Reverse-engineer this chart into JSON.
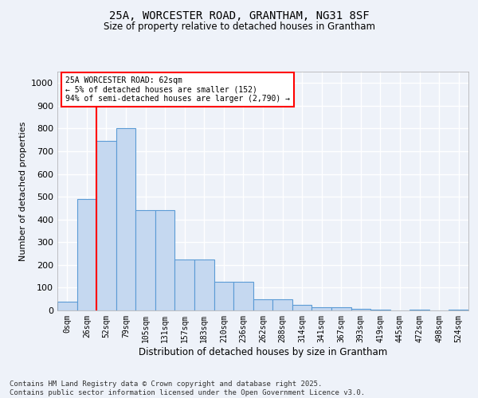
{
  "title": "25A, WORCESTER ROAD, GRANTHAM, NG31 8SF",
  "subtitle": "Size of property relative to detached houses in Grantham",
  "xlabel": "Distribution of detached houses by size in Grantham",
  "ylabel": "Number of detached properties",
  "categories": [
    "0sqm",
    "26sqm",
    "52sqm",
    "79sqm",
    "105sqm",
    "131sqm",
    "157sqm",
    "183sqm",
    "210sqm",
    "236sqm",
    "262sqm",
    "288sqm",
    "314sqm",
    "341sqm",
    "367sqm",
    "393sqm",
    "419sqm",
    "445sqm",
    "472sqm",
    "498sqm",
    "524sqm"
  ],
  "values": [
    40,
    490,
    745,
    800,
    440,
    440,
    225,
    225,
    125,
    125,
    50,
    50,
    25,
    13,
    13,
    8,
    5,
    0,
    5,
    0,
    5
  ],
  "bar_color": "#c5d8f0",
  "bar_edge_color": "#5b9bd5",
  "bar_width": 1.0,
  "vline_x": 1.5,
  "vline_color": "red",
  "annotation_text": "25A WORCESTER ROAD: 62sqm\n← 5% of detached houses are smaller (152)\n94% of semi-detached houses are larger (2,790) →",
  "annotation_box_color": "white",
  "annotation_box_edge_color": "red",
  "ylim": [
    0,
    1050
  ],
  "yticks": [
    0,
    100,
    200,
    300,
    400,
    500,
    600,
    700,
    800,
    900,
    1000
  ],
  "background_color": "#eef2f9",
  "grid_color": "white",
  "footer_line1": "Contains HM Land Registry data © Crown copyright and database right 2025.",
  "footer_line2": "Contains public sector information licensed under the Open Government Licence v3.0."
}
